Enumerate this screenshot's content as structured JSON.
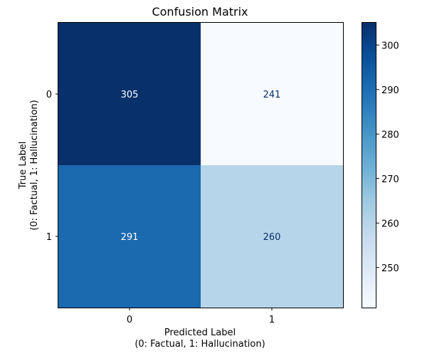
{
  "chart_data": {
    "type": "heatmap",
    "title": "Confusion Matrix",
    "xlabel": [
      "Predicted Label",
      "(0: Factual, 1: Hallucination)"
    ],
    "ylabel": [
      "True Label",
      "(0: Factual, 1: Hallucination)"
    ],
    "x_categories": [
      "0",
      "1"
    ],
    "y_categories": [
      "0",
      "1"
    ],
    "matrix": [
      [
        305,
        241
      ],
      [
        291,
        260
      ]
    ],
    "colormap": "Blues",
    "colorbar": {
      "min": 241,
      "max": 305,
      "ticks": [
        250,
        260,
        270,
        280,
        290,
        300
      ],
      "tick_labels": [
        "250",
        "260",
        "270",
        "280",
        "290",
        "300"
      ]
    },
    "colors": {
      "low": "#f7fbff",
      "high": "#08306b",
      "text_on_light": "#08306b",
      "text_on_dark": "#ffffff"
    }
  }
}
